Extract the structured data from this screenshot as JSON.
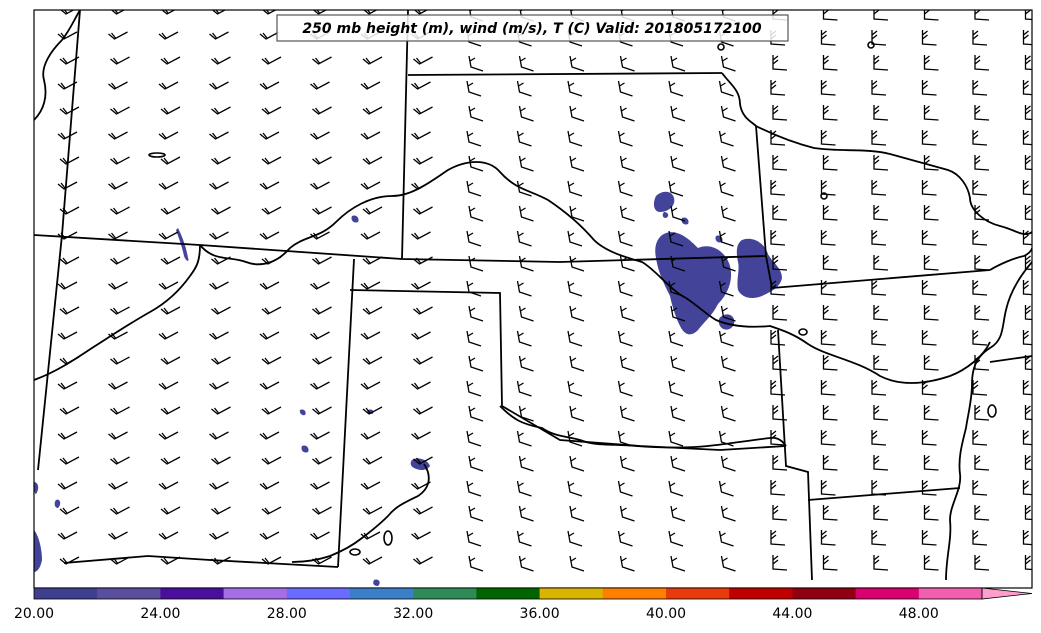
{
  "title": "250 mb height (m), wind (m/s), T (C) Valid: 201805172100",
  "colorbar": {
    "colors": [
      "#3f3f8f",
      "#5a4f9c",
      "#4b0f9e",
      "#a56de6",
      "#6b6bff",
      "#3a7fc8",
      "#2e8b57",
      "#006400",
      "#d9b400",
      "#ff7f00",
      "#e83a0a",
      "#c00000",
      "#8f0010",
      "#d9006f",
      "#f25fae",
      "#ff9dcc"
    ],
    "tick_labels": [
      "20.00",
      "24.00",
      "28.00",
      "32.00",
      "36.00",
      "40.00",
      "44.00",
      "48.00"
    ]
  },
  "map": {
    "land_color": "#ffffff",
    "border_color": "#000000",
    "shading_color": "#43439a"
  }
}
